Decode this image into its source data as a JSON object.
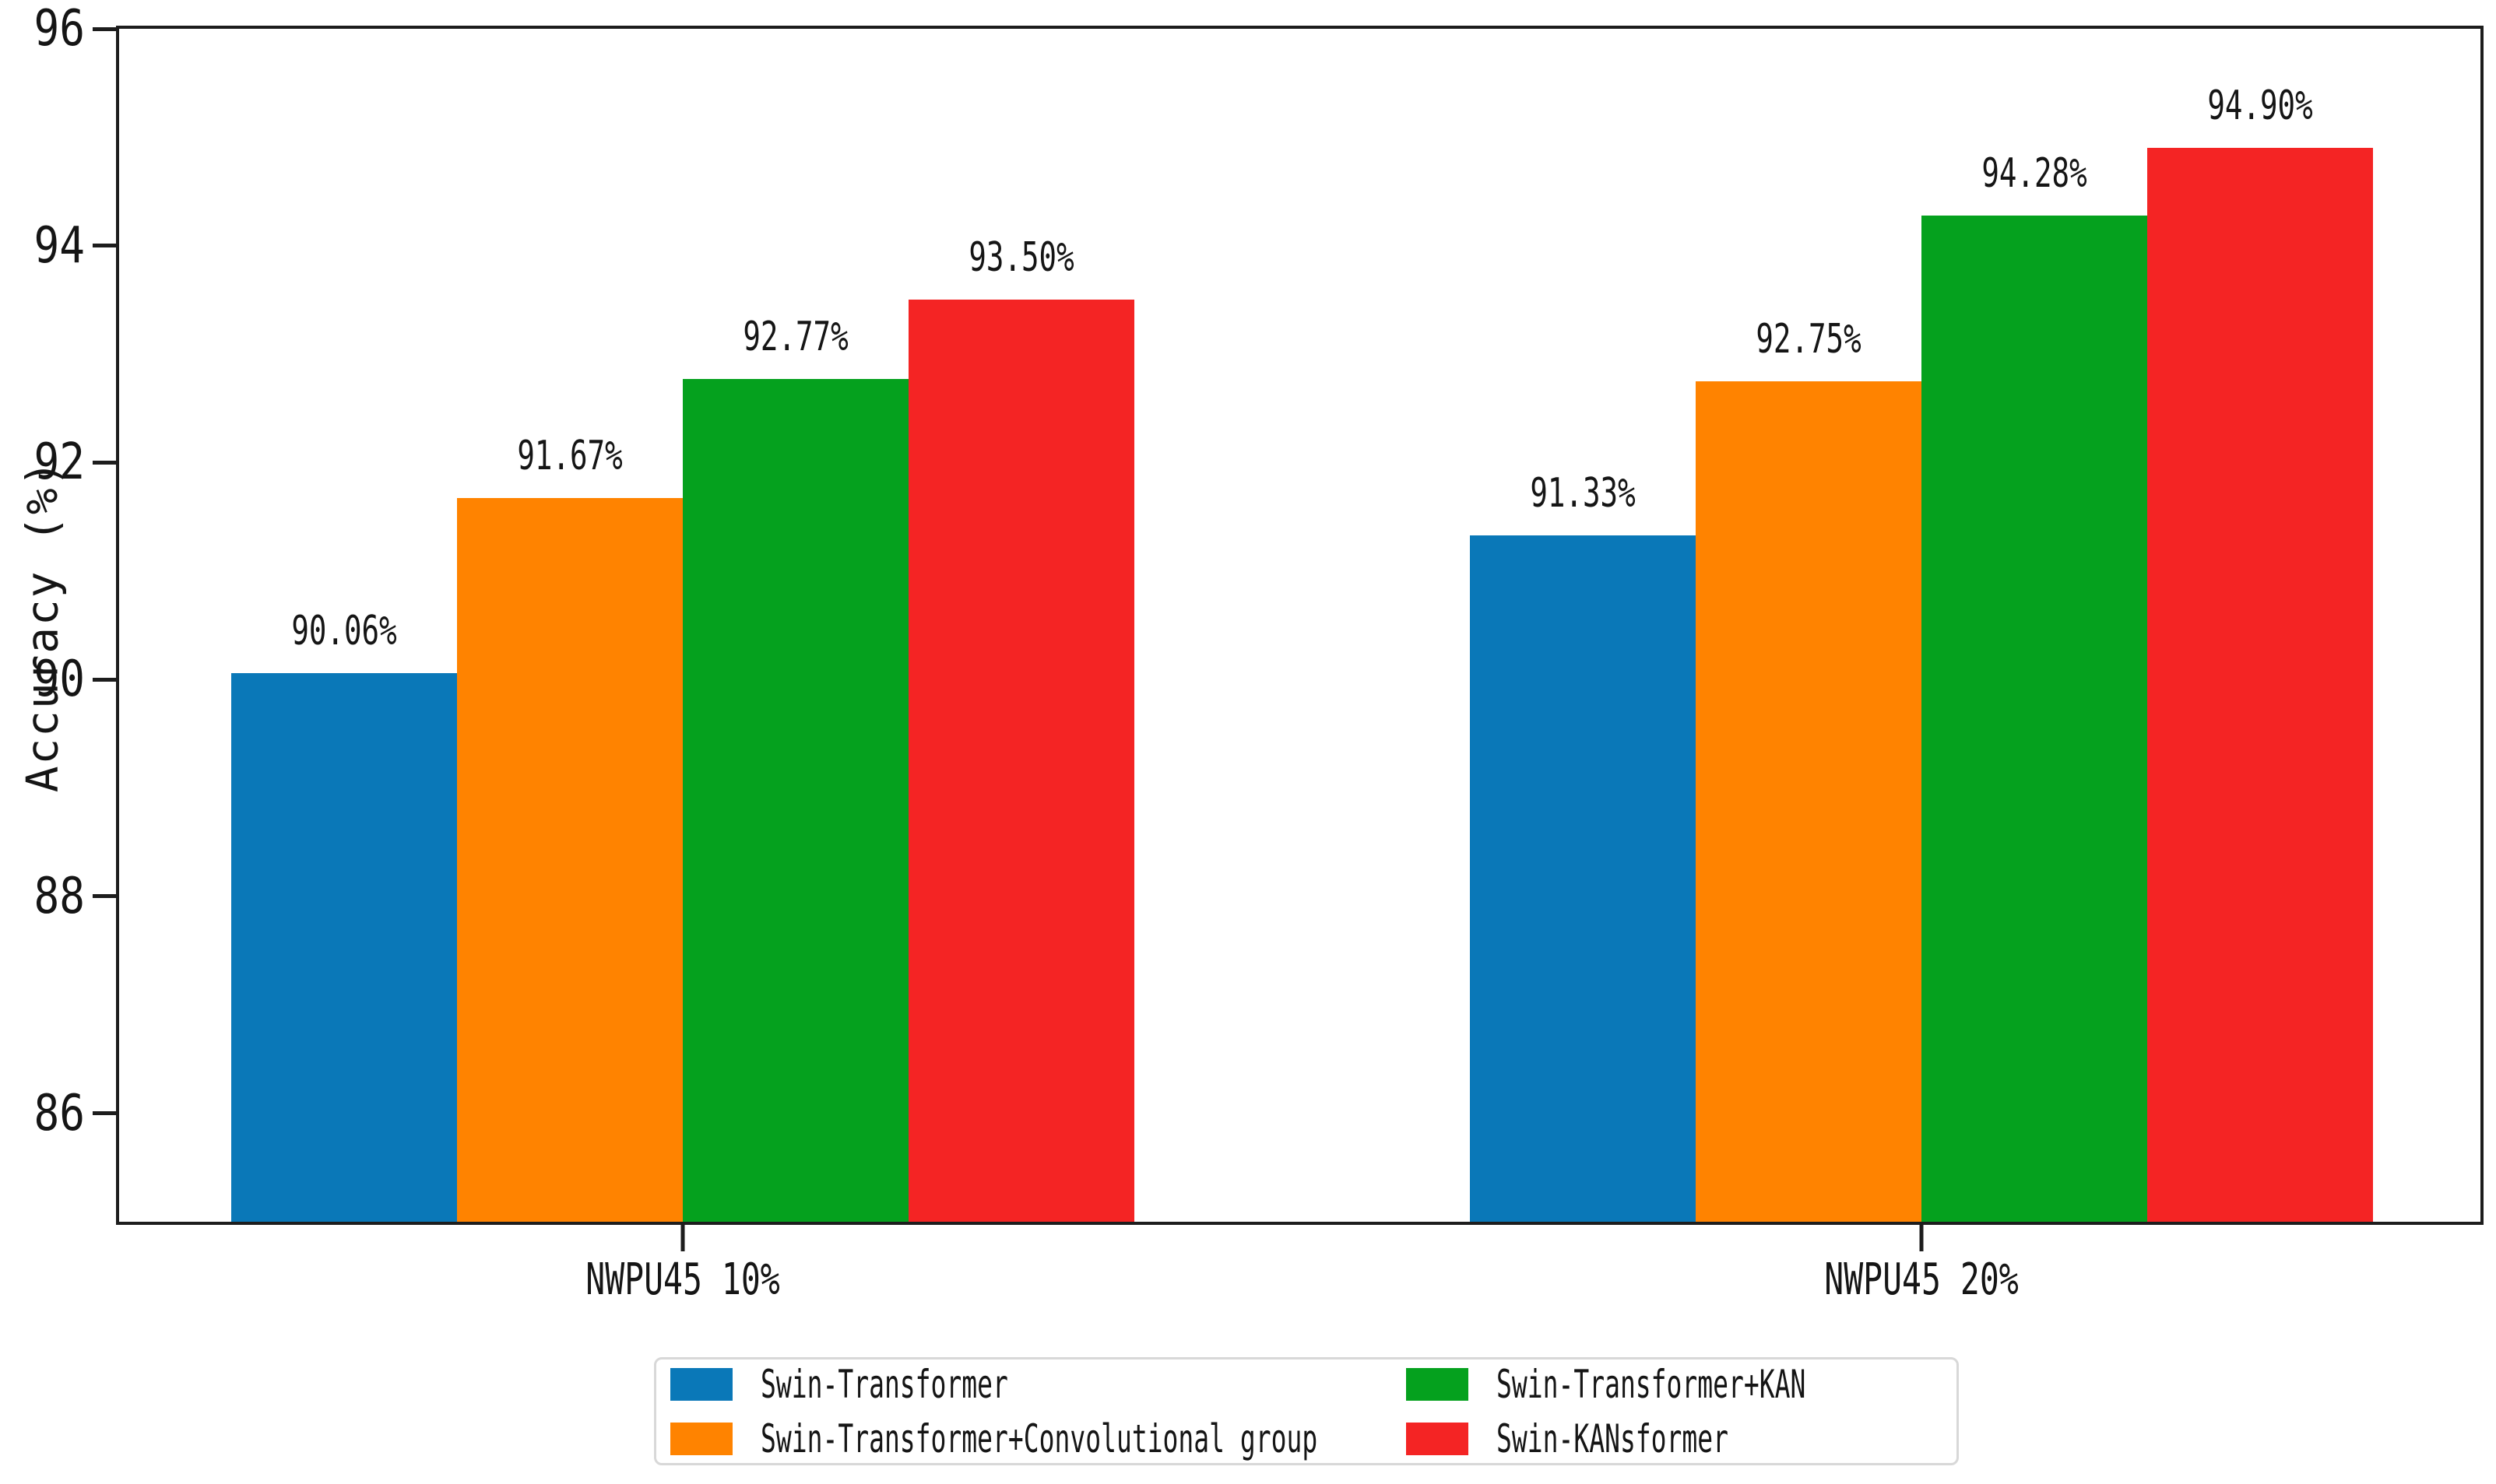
{
  "figure": {
    "background": "#ffffff",
    "axis_color": "#1d1d1d",
    "text_color": "#151515"
  },
  "y_axis": {
    "title": "Accuracy (%)"
  },
  "chart_data": {
    "type": "bar",
    "title": "",
    "xlabel": "",
    "ylabel": "Accuracy (%)",
    "categories": [
      "NWPU45 10%",
      "NWPU45 20%"
    ],
    "series": [
      {
        "name": "Swin-Transformer",
        "color": "#0a78b8",
        "values": [
          90.06,
          91.33
        ],
        "data_labels": [
          "90.06%",
          "91.33%"
        ]
      },
      {
        "name": "Swin-Transformer+Convolutional group",
        "color": "#ff8300",
        "values": [
          91.67,
          92.75
        ],
        "data_labels": [
          "91.67%",
          "92.75%"
        ]
      },
      {
        "name": "Swin-Transformer+KAN",
        "color": "#05a11e",
        "values": [
          92.77,
          94.28
        ],
        "data_labels": [
          "92.77%",
          "94.28%"
        ]
      },
      {
        "name": "Swin-KANsformer",
        "color": "#f42424",
        "values": [
          93.5,
          94.9
        ],
        "data_labels": [
          "93.50%",
          "94.90%"
        ]
      }
    ],
    "ylim": [
      85,
      96
    ],
    "yticks": [
      96,
      94,
      92,
      90,
      88,
      86
    ],
    "grid": false,
    "legend_position": "bottom"
  }
}
